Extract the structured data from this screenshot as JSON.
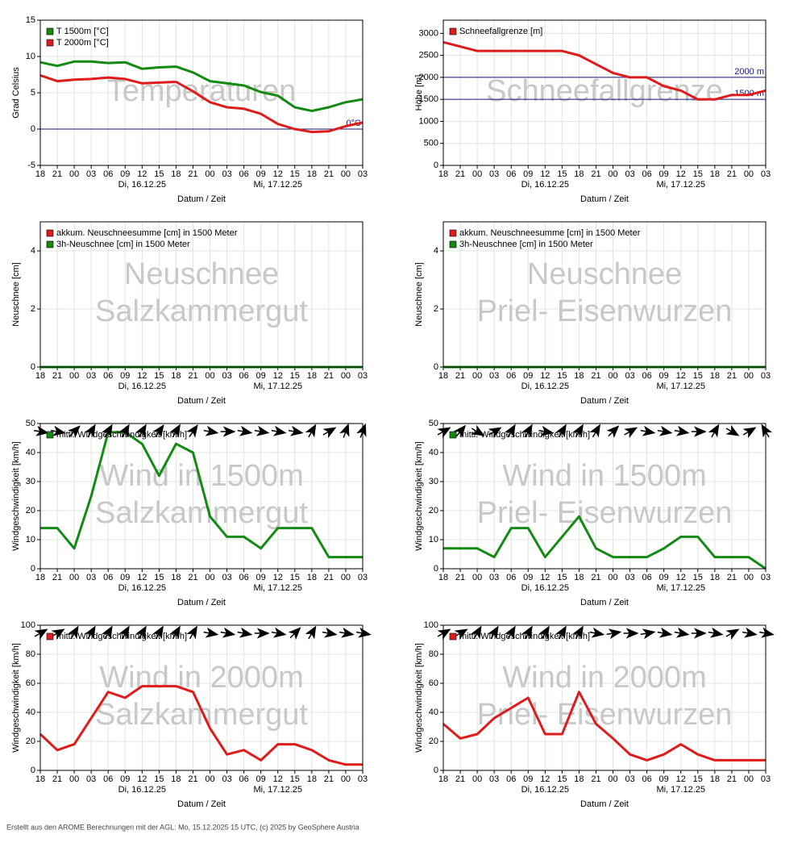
{
  "chart_data": [
    {
      "type": "line",
      "watermark": [
        "Temperaturen"
      ],
      "ylabel": "Grad Celsius",
      "xlabel": "Datum / Zeit",
      "categories": [
        "18",
        "21",
        "00",
        "03",
        "06",
        "09",
        "12",
        "15",
        "18",
        "21",
        "00",
        "03",
        "06",
        "09",
        "12",
        "15",
        "18",
        "21",
        "00",
        "03"
      ],
      "date_labels": [
        "Di, 16.12.25",
        "Mi, 17.12.25"
      ],
      "series": [
        {
          "name": "T 1500m [°C]",
          "color": "#138a13",
          "values": [
            9.2,
            8.7,
            9.3,
            9.3,
            9.1,
            9.2,
            8.3,
            8.5,
            8.6,
            7.8,
            6.6,
            6.3,
            6.0,
            5.1,
            4.6,
            3.0,
            2.5,
            3.0,
            3.7,
            4.1
          ]
        },
        {
          "name": "T 2000m [°C]",
          "color": "#e01b1b",
          "values": [
            7.4,
            6.6,
            6.8,
            6.9,
            7.1,
            6.9,
            6.3,
            6.4,
            6.5,
            5.2,
            3.7,
            3.0,
            2.8,
            2.1,
            0.7,
            0.0,
            -0.4,
            -0.3,
            0.4,
            0.9
          ]
        }
      ],
      "ref_lines": [
        {
          "value": 0,
          "label": "0°C"
        }
      ],
      "ylim": [
        -5,
        15
      ],
      "yticks": [
        -5,
        0,
        5,
        10,
        15
      ],
      "grid": true,
      "legend": "upper left"
    },
    {
      "type": "line",
      "watermark": [
        "Schneefallgrenze"
      ],
      "ylabel": "Höhe [m]",
      "xlabel": "Datum / Zeit",
      "categories": [
        "18",
        "21",
        "00",
        "03",
        "06",
        "09",
        "12",
        "15",
        "18",
        "21",
        "00",
        "03",
        "06",
        "09",
        "12",
        "15",
        "18",
        "21",
        "00",
        "03"
      ],
      "date_labels": [
        "Di, 16.12.25",
        "Mi, 17.12.25"
      ],
      "series": [
        {
          "name": "Schneefallgrenze [m]",
          "color": "#e01b1b",
          "values": [
            2800,
            2700,
            2600,
            2600,
            2600,
            2600,
            2600,
            2600,
            2500,
            2300,
            2100,
            2000,
            2000,
            1800,
            1700,
            1500,
            1500,
            1600,
            1600,
            1700
          ]
        }
      ],
      "ref_lines": [
        {
          "value": 2000,
          "label": "2000 m"
        },
        {
          "value": 1500,
          "label": "1500 m"
        }
      ],
      "ylim": [
        0,
        3300
      ],
      "yticks": [
        0,
        500,
        1000,
        1500,
        2000,
        2500,
        3000
      ],
      "grid": true,
      "legend": "upper left"
    },
    {
      "type": "line",
      "watermark": [
        "Neuschnee",
        "Salzkammergut"
      ],
      "ylabel": "Neuschnee [cm]",
      "xlabel": "Datum / Zeit",
      "categories": [
        "18",
        "21",
        "00",
        "03",
        "06",
        "09",
        "12",
        "15",
        "18",
        "21",
        "00",
        "03",
        "06",
        "09",
        "12",
        "15",
        "18",
        "21",
        "00",
        "03"
      ],
      "date_labels": [
        "Di, 16.12.25",
        "Mi, 17.12.25"
      ],
      "series": [
        {
          "name": "akkum. Neuschneesumme [cm] in 1500 Meter",
          "color": "#e01b1b",
          "values": [
            0,
            0,
            0,
            0,
            0,
            0,
            0,
            0,
            0,
            0,
            0,
            0,
            0,
            0,
            0,
            0,
            0,
            0,
            0,
            0
          ]
        },
        {
          "name": "3h-Neuschnee [cm] in 1500 Meter",
          "color": "#138a13",
          "values": [
            0,
            0,
            0,
            0,
            0,
            0,
            0,
            0,
            0,
            0,
            0,
            0,
            0,
            0,
            0,
            0,
            0,
            0,
            0,
            0
          ]
        }
      ],
      "ylim": [
        0,
        5
      ],
      "yticks": [
        0,
        2,
        4
      ],
      "grid": true,
      "legend": "upper left"
    },
    {
      "type": "line",
      "watermark": [
        "Neuschnee",
        "Priel- Eisenwurzen"
      ],
      "ylabel": "Neuschnee [cm]",
      "xlabel": "Datum / Zeit",
      "categories": [
        "18",
        "21",
        "00",
        "03",
        "06",
        "09",
        "12",
        "15",
        "18",
        "21",
        "00",
        "03",
        "06",
        "09",
        "12",
        "15",
        "18",
        "21",
        "00",
        "03"
      ],
      "date_labels": [
        "Di, 16.12.25",
        "Mi, 17.12.25"
      ],
      "series": [
        {
          "name": "akkum. Neuschneesumme [cm] in 1500 Meter",
          "color": "#e01b1b",
          "values": [
            0,
            0,
            0,
            0,
            0,
            0,
            0,
            0,
            0,
            0,
            0,
            0,
            0,
            0,
            0,
            0,
            0,
            0,
            0,
            0
          ]
        },
        {
          "name": "3h-Neuschnee [cm] in 1500 Meter",
          "color": "#138a13",
          "values": [
            0,
            0,
            0,
            0,
            0,
            0,
            0,
            0,
            0,
            0,
            0,
            0,
            0,
            0,
            0,
            0,
            0,
            0,
            0,
            0
          ]
        }
      ],
      "ylim": [
        0,
        5
      ],
      "yticks": [
        0,
        2,
        4
      ],
      "grid": true,
      "legend": "upper left"
    },
    {
      "type": "line",
      "watermark": [
        "Wind in 1500m",
        "Salzkammergut"
      ],
      "ylabel": "Windgeschwindigkeit [km/h]",
      "xlabel": "Datum / Zeit",
      "categories": [
        "18",
        "21",
        "00",
        "03",
        "06",
        "09",
        "12",
        "15",
        "18",
        "21",
        "00",
        "03",
        "06",
        "09",
        "12",
        "15",
        "18",
        "21",
        "00",
        "03"
      ],
      "date_labels": [
        "Di, 16.12.25",
        "Mi, 17.12.25"
      ],
      "series": [
        {
          "name": "mittl. Windgeschwindigkeit [km/h]",
          "color": "#138a13",
          "values": [
            14,
            14,
            7,
            25,
            47,
            47,
            43,
            32,
            43,
            40,
            18,
            11,
            11,
            7,
            14,
            14,
            14,
            4,
            4,
            4
          ]
        }
      ],
      "wind_dir": [
        100,
        100,
        45,
        30,
        30,
        30,
        30,
        35,
        30,
        35,
        100,
        90,
        100,
        100,
        100,
        100,
        30,
        60,
        20,
        20
      ],
      "ylim": [
        0,
        50
      ],
      "yticks": [
        0,
        10,
        20,
        30,
        40,
        50
      ],
      "grid": true,
      "legend": "upper left"
    },
    {
      "type": "line",
      "watermark": [
        "Wind in 1500m",
        "Priel- Eisenwurzen"
      ],
      "ylabel": "Windgeschwindigkeit [km/h]",
      "xlabel": "Datum / Zeit",
      "categories": [
        "18",
        "21",
        "00",
        "03",
        "06",
        "09",
        "12",
        "15",
        "18",
        "21",
        "00",
        "03",
        "06",
        "09",
        "12",
        "15",
        "18",
        "21",
        "00",
        "03"
      ],
      "date_labels": [
        "Di, 16.12.25",
        "Mi, 17.12.25"
      ],
      "series": [
        {
          "name": "mittl. Windgeschwindigkeit [km/h]",
          "color": "#138a13",
          "values": [
            7,
            7,
            7,
            4,
            14,
            14,
            4,
            11,
            18,
            7,
            4,
            4,
            4,
            7,
            11,
            11,
            4,
            4,
            4,
            0
          ]
        }
      ],
      "wind_dir": [
        60,
        40,
        120,
        60,
        30,
        30,
        100,
        30,
        30,
        30,
        45,
        60,
        100,
        100,
        100,
        90,
        30,
        120,
        60,
        330
      ],
      "ylim": [
        0,
        50
      ],
      "yticks": [
        0,
        10,
        20,
        30,
        40,
        50
      ],
      "grid": true,
      "legend": "upper left"
    },
    {
      "type": "line",
      "watermark": [
        "Wind in 2000m",
        "Salzkammergut"
      ],
      "ylabel": "Windgeschwindigkeit [km/h]",
      "xlabel": "Datum / Zeit",
      "categories": [
        "18",
        "21",
        "00",
        "03",
        "06",
        "09",
        "12",
        "15",
        "18",
        "21",
        "00",
        "03",
        "06",
        "09",
        "12",
        "15",
        "18",
        "21",
        "00",
        "03"
      ],
      "date_labels": [
        "Di, 16.12.25",
        "Mi, 17.12.25"
      ],
      "series": [
        {
          "name": "mittl. Windgeschwindigkeit [km/h]",
          "color": "#e01b1b",
          "values": [
            25,
            14,
            18,
            36,
            54,
            50,
            58,
            58,
            58,
            54,
            29,
            11,
            14,
            7,
            18,
            18,
            14,
            7,
            4,
            4
          ]
        }
      ],
      "wind_dir": [
        60,
        60,
        30,
        30,
        30,
        30,
        30,
        30,
        30,
        30,
        100,
        100,
        100,
        90,
        100,
        45,
        30,
        100,
        100,
        100
      ],
      "ylim": [
        0,
        100
      ],
      "yticks": [
        0,
        20,
        40,
        60,
        80,
        100
      ],
      "grid": true,
      "legend": "upper left"
    },
    {
      "type": "line",
      "watermark": [
        "Wind in 2000m",
        "Priel- Eisenwurzen"
      ],
      "ylabel": "Windgeschwindigkeit [km/h]",
      "xlabel": "Datum / Zeit",
      "categories": [
        "18",
        "21",
        "00",
        "03",
        "06",
        "09",
        "12",
        "15",
        "18",
        "21",
        "00",
        "03",
        "06",
        "09",
        "12",
        "15",
        "18",
        "21",
        "00",
        "03"
      ],
      "date_labels": [
        "Di, 16.12.25",
        "Mi, 17.12.25"
      ],
      "series": [
        {
          "name": "mittl. Windgeschwindigkeit [km/h]",
          "color": "#e01b1b",
          "values": [
            32,
            22,
            25,
            36,
            43,
            50,
            25,
            25,
            54,
            32,
            22,
            11,
            7,
            11,
            18,
            11,
            7,
            7,
            7,
            7
          ]
        }
      ],
      "wind_dir": [
        60,
        60,
        30,
        30,
        30,
        30,
        30,
        30,
        30,
        100,
        80,
        90,
        80,
        100,
        100,
        90,
        100,
        60,
        100,
        100
      ],
      "ylim": [
        0,
        100
      ],
      "yticks": [
        0,
        20,
        40,
        60,
        80,
        100
      ],
      "grid": true,
      "legend": "upper left"
    }
  ],
  "footer": "Erstellt aus den AROME Berechnungen mit der AGL: Mo, 15.12.2025 15 UTC, (c) 2025 by GeoSphere Austria"
}
